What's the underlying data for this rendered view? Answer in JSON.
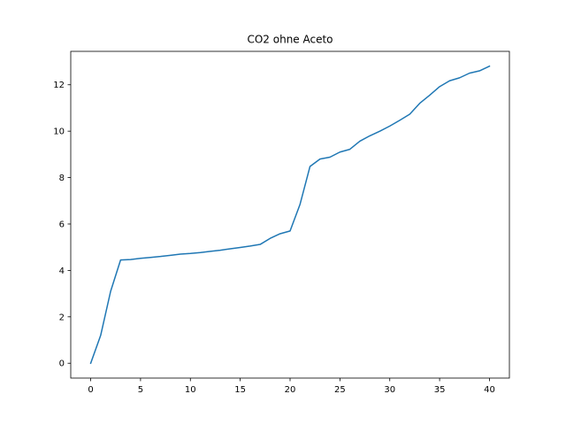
{
  "chart_data": {
    "type": "line",
    "title": "CO2 ohne Aceto",
    "xlabel": "",
    "ylabel": "",
    "xlim": [
      -2,
      42
    ],
    "ylim": [
      -0.64,
      13.44
    ],
    "xticks": [
      0,
      5,
      10,
      15,
      20,
      25,
      30,
      35,
      40
    ],
    "yticks": [
      0,
      2,
      4,
      6,
      8,
      10,
      12
    ],
    "grid": false,
    "series": [
      {
        "color": "#1f77b4",
        "x": [
          0,
          1,
          2,
          3,
          4,
          5,
          6,
          7,
          8,
          9,
          10,
          11,
          12,
          13,
          14,
          15,
          16,
          17,
          18,
          19,
          20,
          21,
          22,
          23,
          24,
          25,
          26,
          27,
          28,
          29,
          30,
          31,
          32,
          33,
          34,
          35,
          36,
          37,
          38,
          39,
          40
        ],
        "y": [
          0,
          1.2,
          3.1,
          4.45,
          4.47,
          4.52,
          4.56,
          4.6,
          4.65,
          4.7,
          4.73,
          4.77,
          4.82,
          4.87,
          4.93,
          4.99,
          5.05,
          5.12,
          5.38,
          5.58,
          5.7,
          6.85,
          8.48,
          8.8,
          8.88,
          9.1,
          9.22,
          9.57,
          9.8,
          10.0,
          10.22,
          10.47,
          10.73,
          11.2,
          11.55,
          11.92,
          12.17,
          12.3,
          12.5,
          12.6,
          12.8
        ]
      }
    ]
  }
}
